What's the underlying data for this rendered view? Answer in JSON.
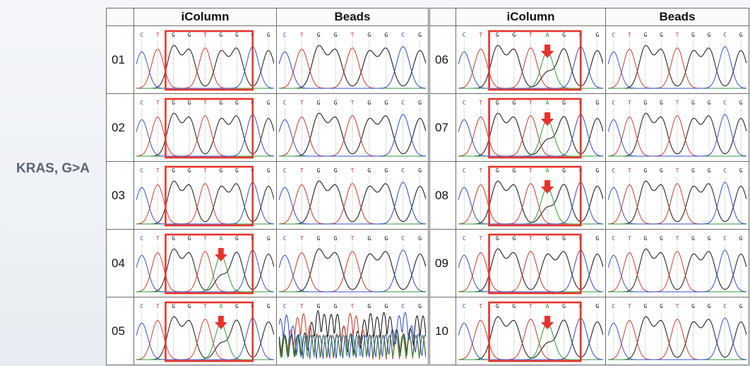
{
  "side_label": "KRAS, G>A",
  "headers": {
    "left_method_1": "iColumn",
    "left_method_2": "Beads",
    "right_method_1": "iColumn",
    "right_method_2": "Beads"
  },
  "samples": [
    {
      "left": "01",
      "right": "06"
    },
    {
      "left": "02",
      "right": "07"
    },
    {
      "left": "03",
      "right": "08"
    },
    {
      "left": "04",
      "right": "09"
    },
    {
      "left": "05",
      "right": "10"
    }
  ],
  "highlight_color": "#e8332a",
  "trace_colors": {
    "C": "#3050c8",
    "T": "#d03a2a",
    "G": "#111111",
    "A": "#2e9a3a"
  }
}
